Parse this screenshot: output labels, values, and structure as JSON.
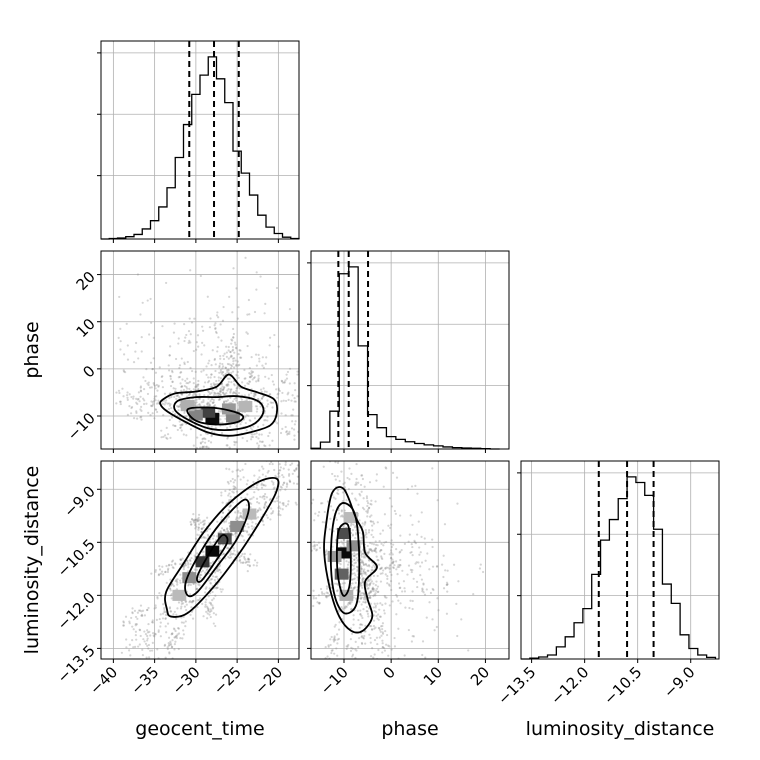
{
  "chart_data": {
    "type": "corner",
    "parameters": [
      {
        "name": "geocent_time",
        "label": "geocent_time",
        "range": [
          -41.5,
          -17.5
        ],
        "ticks": [
          -40,
          -35,
          -30,
          -25,
          -20
        ],
        "tick_labels": [
          "−40",
          "−35",
          "−30",
          "−25",
          "−20"
        ],
        "quantiles": [
          -30.8,
          -27.8,
          -24.8
        ],
        "hist_bins": [
          -41.5,
          -40.5,
          -39.5,
          -38.5,
          -37.5,
          -36.5,
          -35.5,
          -34.5,
          -33.5,
          -32.5,
          -31.5,
          -30.5,
          -29.5,
          -28.5,
          -27.5,
          -26.5,
          -25.5,
          -24.5,
          -23.5,
          -22.5,
          -21.5,
          -20.5,
          -19.5,
          -18.5,
          -17.5
        ],
        "hist_counts": [
          0,
          1,
          2,
          5,
          10,
          22,
          40,
          70,
          112,
          178,
          250,
          316,
          358,
          398,
          350,
          298,
          192,
          144,
          96,
          52,
          26,
          12,
          4,
          1
        ]
      },
      {
        "name": "phase",
        "label": "phase",
        "range": [
          -17,
          25
        ],
        "ticks": [
          -10,
          0,
          10,
          20
        ],
        "tick_labels": [
          "−10",
          "0",
          "10",
          "20"
        ],
        "quantiles": [
          -11.2,
          -9.0,
          -4.9
        ],
        "hist_bins": [
          -17,
          -15,
          -13,
          -11,
          -9,
          -7,
          -5,
          -3,
          -1,
          1,
          3,
          5,
          7,
          9,
          11,
          13,
          15,
          17,
          19,
          21,
          23
        ],
        "hist_counts": [
          2,
          20,
          110,
          510,
          530,
          300,
          100,
          62,
          36,
          28,
          21,
          16,
          12,
          9,
          6,
          4,
          3,
          2,
          1,
          0
        ]
      },
      {
        "name": "luminosity_distance",
        "label": "luminosity_distance",
        "range": [
          -13.8,
          -8.2
        ],
        "ticks": [
          -13.5,
          -12.0,
          -10.5,
          -9.0
        ],
        "tick_labels": [
          "−13.5",
          "−12.0",
          "−10.5",
          "−9.0"
        ],
        "quantiles": [
          -11.6,
          -10.8,
          -10.05
        ],
        "hist_bins": [
          -13.8,
          -13.55,
          -13.3,
          -13.05,
          -12.8,
          -12.55,
          -12.3,
          -12.05,
          -11.8,
          -11.55,
          -11.3,
          -11.05,
          -10.8,
          -10.55,
          -10.3,
          -10.05,
          -9.8,
          -9.55,
          -9.3,
          -9.05,
          -8.8,
          -8.55,
          -8.3
        ],
        "hist_counts": [
          0,
          2,
          5,
          10,
          30,
          55,
          90,
          125,
          210,
          295,
          346,
          398,
          452,
          438,
          406,
          322,
          186,
          138,
          60,
          26,
          10,
          4
        ]
      }
    ],
    "joint": [
      {
        "x": "geocent_time",
        "y": "phase",
        "peak": [
          -27.5,
          -10.5
        ],
        "cores": [
          {
            "x": -28.0,
            "y": -10.5,
            "w": 1.0
          },
          {
            "x": -28.5,
            "y": -9.2,
            "w": 0.75
          },
          {
            "x": -30.0,
            "y": -9.8,
            "w": 0.45
          },
          {
            "x": -25.5,
            "y": -10.2,
            "w": 0.45
          },
          {
            "x": -26.0,
            "y": -8.5,
            "w": 0.35
          },
          {
            "x": -31.0,
            "y": -7.8,
            "w": 0.25
          },
          {
            "x": -24.0,
            "y": -8.0,
            "w": 0.22
          }
        ],
        "contours": [
          [
            [
              -34.0,
              -6.5
            ],
            [
              -32.5,
              -5.2
            ],
            [
              -30.0,
              -4.8
            ],
            [
              -27.5,
              -3.8
            ],
            [
              -26.0,
              -1.2
            ],
            [
              -24.5,
              -3.8
            ],
            [
              -22.5,
              -5.0
            ],
            [
              -20.5,
              -6.5
            ],
            [
              -20.2,
              -9.5
            ],
            [
              -21.0,
              -12.0
            ],
            [
              -23.5,
              -13.5
            ],
            [
              -26.0,
              -14.2
            ],
            [
              -28.5,
              -13.5
            ],
            [
              -31.0,
              -11.5
            ],
            [
              -33.5,
              -9.0
            ],
            [
              -34.3,
              -7.5
            ]
          ],
          [
            [
              -32.2,
              -6.8
            ],
            [
              -30.0,
              -6.0
            ],
            [
              -27.5,
              -6.0
            ],
            [
              -25.0,
              -5.8
            ],
            [
              -22.5,
              -6.8
            ],
            [
              -21.8,
              -9.0
            ],
            [
              -22.8,
              -11.5
            ],
            [
              -25.0,
              -12.8
            ],
            [
              -28.0,
              -12.8
            ],
            [
              -30.5,
              -11.2
            ],
            [
              -32.5,
              -8.8
            ]
          ],
          [
            [
              -31.0,
              -8.6
            ],
            [
              -28.5,
              -8.2
            ],
            [
              -26.0,
              -8.8
            ],
            [
              -24.3,
              -10.0
            ],
            [
              -25.0,
              -11.3
            ],
            [
              -27.5,
              -11.8
            ],
            [
              -30.0,
              -11.0
            ]
          ]
        ]
      },
      {
        "x": "geocent_time",
        "y": "luminosity_distance",
        "peak": [
          -27.5,
          -10.7
        ],
        "cores": [
          {
            "x": -28.0,
            "y": -10.75,
            "w": 1.0
          },
          {
            "x": -29.2,
            "y": -11.05,
            "w": 0.8
          },
          {
            "x": -26.5,
            "y": -10.4,
            "w": 0.7
          },
          {
            "x": -30.8,
            "y": -11.5,
            "w": 0.4
          },
          {
            "x": -25.0,
            "y": -10.05,
            "w": 0.4
          },
          {
            "x": -32.0,
            "y": -12.0,
            "w": 0.2
          },
          {
            "x": -23.5,
            "y": -9.7,
            "w": 0.2
          }
        ],
        "contours": [
          [
            [
              -33.5,
              -12.4
            ],
            [
              -33.6,
              -11.9
            ],
            [
              -31.5,
              -11.1
            ],
            [
              -29.0,
              -10.2
            ],
            [
              -26.0,
              -9.4
            ],
            [
              -22.5,
              -8.8
            ],
            [
              -20.2,
              -8.7
            ],
            [
              -20.3,
              -9.1
            ],
            [
              -22.2,
              -9.9
            ],
            [
              -25.0,
              -10.9
            ],
            [
              -28.0,
              -11.8
            ],
            [
              -31.0,
              -12.5
            ],
            [
              -33.0,
              -12.6
            ]
          ],
          [
            [
              -31.0,
              -12.0
            ],
            [
              -31.2,
              -11.6
            ],
            [
              -29.5,
              -10.8
            ],
            [
              -27.0,
              -9.95
            ],
            [
              -24.2,
              -9.3
            ],
            [
              -23.6,
              -9.6
            ],
            [
              -25.0,
              -10.4
            ],
            [
              -27.5,
              -11.2
            ],
            [
              -29.8,
              -11.9
            ]
          ],
          [
            [
              -29.8,
              -11.45
            ],
            [
              -28.2,
              -10.75
            ],
            [
              -26.8,
              -10.3
            ],
            [
              -26.2,
              -10.5
            ],
            [
              -27.8,
              -11.1
            ],
            [
              -29.4,
              -11.6
            ]
          ]
        ]
      },
      {
        "x": "phase",
        "y": "luminosity_distance",
        "peak": [
          -10.0,
          -10.8
        ],
        "cores": [
          {
            "x": -10.2,
            "y": -10.8,
            "w": 1.0
          },
          {
            "x": -10.0,
            "y": -10.25,
            "w": 0.7
          },
          {
            "x": -10.5,
            "y": -11.4,
            "w": 0.6
          },
          {
            "x": -8.0,
            "y": -10.6,
            "w": 0.4
          },
          {
            "x": -12.0,
            "y": -10.9,
            "w": 0.35
          },
          {
            "x": -9.5,
            "y": -12.0,
            "w": 0.25
          },
          {
            "x": -8.5,
            "y": -9.8,
            "w": 0.2
          }
        ],
        "contours": [
          [
            [
              -13.8,
              -10.0
            ],
            [
              -12.5,
              -9.1
            ],
            [
              -10.0,
              -9.0
            ],
            [
              -7.5,
              -9.8
            ],
            [
              -6.0,
              -10.2
            ],
            [
              -5.5,
              -10.8
            ],
            [
              -3.0,
              -11.2
            ],
            [
              -5.5,
              -11.6
            ],
            [
              -5.0,
              -12.1
            ],
            [
              -4.0,
              -12.6
            ],
            [
              -6.0,
              -13.0
            ],
            [
              -8.5,
              -13.0
            ],
            [
              -11.0,
              -12.6
            ],
            [
              -13.0,
              -11.8
            ],
            [
              -14.2,
              -10.8
            ]
          ],
          [
            [
              -12.2,
              -9.9
            ],
            [
              -10.5,
              -9.4
            ],
            [
              -8.0,
              -9.6
            ],
            [
              -7.0,
              -10.3
            ],
            [
              -6.8,
              -11.5
            ],
            [
              -7.5,
              -12.3
            ],
            [
              -10.0,
              -12.5
            ],
            [
              -12.0,
              -12.0
            ],
            [
              -12.8,
              -11.0
            ]
          ],
          [
            [
              -11.2,
              -10.2
            ],
            [
              -9.2,
              -10.0
            ],
            [
              -8.6,
              -10.7
            ],
            [
              -8.8,
              -11.7
            ],
            [
              -10.2,
              -12.0
            ],
            [
              -11.4,
              -11.3
            ]
          ]
        ]
      }
    ],
    "grid": true,
    "style": {
      "line": "#000000",
      "grid": "#b0b0b0",
      "points": "#888888"
    }
  }
}
